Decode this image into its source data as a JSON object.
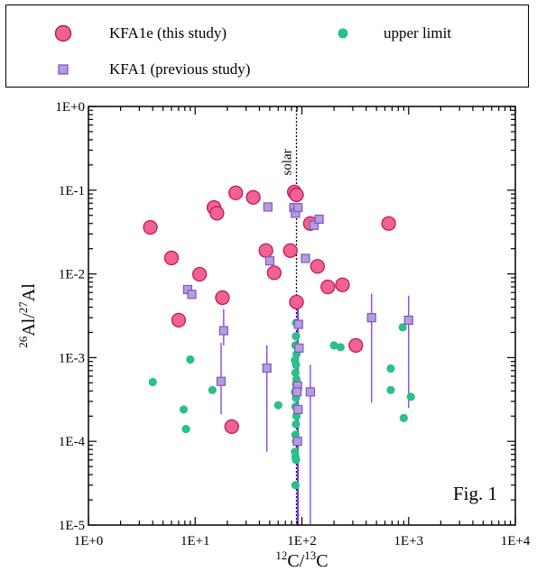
{
  "chart_data": {
    "type": "scatter",
    "xlabel": "12C/13C",
    "ylabel": "26Al/27Al",
    "xscale": "log",
    "yscale": "log",
    "xlim": [
      1,
      10000
    ],
    "ylim": [
      1e-05,
      1
    ],
    "x_ticks": [
      "1E+0",
      "1E+1",
      "1E+2",
      "1E+3",
      "1E+4"
    ],
    "y_ticks": [
      "1E-5",
      "1E-4",
      "1E-3",
      "1E-2",
      "1E-1",
      "1E+0"
    ],
    "grid": false,
    "legend_position": "top",
    "annotations": [
      {
        "text": "solar",
        "x": 89,
        "y": 0.15
      },
      {
        "text": "Fig. 1",
        "position": "bottom-right"
      }
    ],
    "reference_lines": [
      {
        "x": 89,
        "label": "solar",
        "style": "dotted"
      }
    ],
    "series": [
      {
        "name": "KFA1e (this study)",
        "marker": "circle",
        "color": "#f06292",
        "points": [
          {
            "x": 3.8,
            "y": 0.036
          },
          {
            "x": 6.0,
            "y": 0.0155
          },
          {
            "x": 7.0,
            "y": 0.0028
          },
          {
            "x": 11,
            "y": 0.0099
          },
          {
            "x": 15,
            "y": 0.062
          },
          {
            "x": 16,
            "y": 0.053
          },
          {
            "x": 18,
            "y": 0.0052
          },
          {
            "x": 22,
            "y": 0.00015
          },
          {
            "x": 24,
            "y": 0.093
          },
          {
            "x": 35,
            "y": 0.082
          },
          {
            "x": 46,
            "y": 0.019
          },
          {
            "x": 55,
            "y": 0.0103
          },
          {
            "x": 78,
            "y": 0.019
          },
          {
            "x": 85,
            "y": 0.095
          },
          {
            "x": 89,
            "y": 0.088
          },
          {
            "x": 89,
            "y": 0.0046
          },
          {
            "x": 120,
            "y": 0.04
          },
          {
            "x": 140,
            "y": 0.0123
          },
          {
            "x": 175,
            "y": 0.007
          },
          {
            "x": 240,
            "y": 0.0074
          },
          {
            "x": 320,
            "y": 0.0014
          },
          {
            "x": 650,
            "y": 0.04
          }
        ]
      },
      {
        "name": "KFA1 (previous study)",
        "marker": "square",
        "color": "#b39ddb",
        "points": [
          {
            "x": 8.5,
            "y": 0.0065
          },
          {
            "x": 9.3,
            "y": 0.0057
          },
          {
            "x": 17.5,
            "y": 0.00052,
            "err_lo": 0.00021,
            "err_hi": 0.0015
          },
          {
            "x": 18.5,
            "y": 0.0021,
            "err_lo": 0.0014,
            "err_hi": 0.0038
          },
          {
            "x": 47,
            "y": 0.00075,
            "err_lo": 7.5e-05,
            "err_hi": 0.0014
          },
          {
            "x": 48,
            "y": 0.063
          },
          {
            "x": 50,
            "y": 0.0143
          },
          {
            "x": 84,
            "y": 0.062
          },
          {
            "x": 87,
            "y": 0.053
          },
          {
            "x": 92,
            "y": 0.062
          },
          {
            "x": 93,
            "y": 0.0025
          },
          {
            "x": 94,
            "y": 0.0013
          },
          {
            "x": 91,
            "y": 0.00046
          },
          {
            "x": 90,
            "y": 0.00039
          },
          {
            "x": 92,
            "y": 0.00024
          },
          {
            "x": 91,
            "y": 0.0001
          },
          {
            "x": 108,
            "y": 0.0153
          },
          {
            "x": 120,
            "y": 0.00039,
            "err_lo": 1e-05,
            "err_hi": 0.00082
          },
          {
            "x": 130,
            "y": 0.038
          },
          {
            "x": 145,
            "y": 0.045
          },
          {
            "x": 450,
            "y": 0.003,
            "err_lo": 0.00029,
            "err_hi": 0.0058
          },
          {
            "x": 1000,
            "y": 0.0028,
            "err_lo": 0.00025,
            "err_hi": 0.0055
          }
        ]
      },
      {
        "name": "upper limit",
        "marker": "dot",
        "color": "#2bbf8a",
        "points": [
          {
            "x": 4.0,
            "y": 0.00051
          },
          {
            "x": 7.8,
            "y": 0.00024
          },
          {
            "x": 8.2,
            "y": 0.00014
          },
          {
            "x": 9.0,
            "y": 0.00095
          },
          {
            "x": 14.5,
            "y": 0.00041
          },
          {
            "x": 60,
            "y": 0.00027
          },
          {
            "x": 88,
            "y": 0.0026
          },
          {
            "x": 88,
            "y": 0.0018
          },
          {
            "x": 87,
            "y": 0.0014
          },
          {
            "x": 89,
            "y": 0.0011
          },
          {
            "x": 86,
            "y": 0.00093
          },
          {
            "x": 88,
            "y": 0.00082
          },
          {
            "x": 87,
            "y": 0.00066
          },
          {
            "x": 89,
            "y": 0.00055
          },
          {
            "x": 88,
            "y": 0.00048
          },
          {
            "x": 86,
            "y": 0.00039
          },
          {
            "x": 88,
            "y": 0.00033
          },
          {
            "x": 87,
            "y": 0.00026
          },
          {
            "x": 89,
            "y": 0.0002
          },
          {
            "x": 88,
            "y": 0.00016
          },
          {
            "x": 87,
            "y": 0.00012
          },
          {
            "x": 88,
            "y": 0.0001
          },
          {
            "x": 86,
            "y": 7.5e-05
          },
          {
            "x": 87,
            "y": 6.5e-05
          },
          {
            "x": 88,
            "y": 6e-05
          },
          {
            "x": 87,
            "y": 3e-05
          },
          {
            "x": 200,
            "y": 0.0014
          },
          {
            "x": 230,
            "y": 0.00133
          },
          {
            "x": 680,
            "y": 0.00074
          },
          {
            "x": 680,
            "y": 0.00041
          },
          {
            "x": 900,
            "y": 0.00019
          },
          {
            "x": 880,
            "y": 0.0023
          },
          {
            "x": 1050,
            "y": 0.00034
          }
        ]
      }
    ]
  }
}
